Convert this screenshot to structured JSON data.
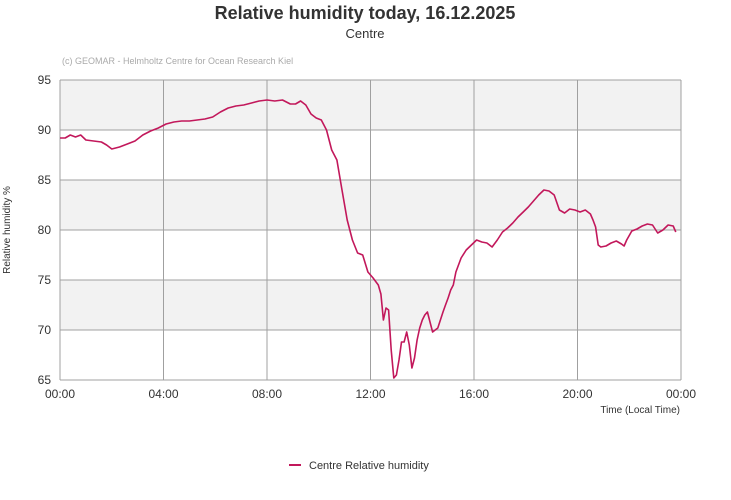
{
  "chart_data": {
    "type": "line",
    "title": "Relative humidity today, 16.12.2025",
    "subtitle": "Centre",
    "credit": "(c) GEOMAR - Helmholtz Centre for Ocean Research Kiel",
    "xlabel": "Time (Local Time)",
    "ylabel": "Relative humidity %",
    "x_ticks": [
      "00:00",
      "04:00",
      "08:00",
      "12:00",
      "16:00",
      "20:00",
      "00:00"
    ],
    "y_ticks": [
      "65",
      "70",
      "75",
      "80",
      "85",
      "90",
      "95"
    ],
    "xlim_hours": [
      0,
      24
    ],
    "ylim": [
      65,
      95
    ],
    "grid": true,
    "band_colors": [
      "#f2f2f2",
      "#ffffff"
    ],
    "line_color": "#c2185b",
    "legend_position": "bottom-center",
    "series": [
      {
        "name": "Centre Relative humidity",
        "x_hours": [
          0.0,
          0.2,
          0.4,
          0.6,
          0.8,
          1.0,
          1.3,
          1.6,
          1.8,
          2.0,
          2.3,
          2.6,
          2.9,
          3.2,
          3.5,
          3.8,
          4.1,
          4.4,
          4.7,
          5.0,
          5.3,
          5.6,
          5.9,
          6.2,
          6.5,
          6.8,
          7.1,
          7.4,
          7.7,
          8.0,
          8.3,
          8.6,
          8.9,
          9.1,
          9.3,
          9.5,
          9.7,
          9.9,
          10.1,
          10.3,
          10.5,
          10.7,
          10.9,
          11.1,
          11.3,
          11.5,
          11.7,
          11.9,
          12.1,
          12.3,
          12.4,
          12.5,
          12.6,
          12.7,
          12.8,
          12.9,
          13.0,
          13.1,
          13.2,
          13.3,
          13.4,
          13.5,
          13.6,
          13.7,
          13.8,
          13.9,
          14.0,
          14.1,
          14.2,
          14.4,
          14.6,
          14.8,
          14.9,
          15.0,
          15.1,
          15.2,
          15.3,
          15.5,
          15.7,
          15.9,
          16.1,
          16.3,
          16.5,
          16.7,
          16.9,
          17.1,
          17.3,
          17.5,
          17.7,
          17.9,
          18.1,
          18.3,
          18.5,
          18.7,
          18.9,
          19.1,
          19.3,
          19.5,
          19.7,
          19.9,
          20.1,
          20.3,
          20.5,
          20.6,
          20.7,
          20.8,
          20.9,
          21.1,
          21.3,
          21.5,
          21.7,
          21.8,
          21.9,
          22.1,
          22.3,
          22.5,
          22.7,
          22.9,
          23.1,
          23.3,
          23.5,
          23.7,
          23.8
        ],
        "values": [
          89.2,
          89.2,
          89.5,
          89.3,
          89.5,
          89.0,
          88.9,
          88.8,
          88.5,
          88.1,
          88.3,
          88.6,
          88.9,
          89.5,
          89.9,
          90.2,
          90.6,
          90.8,
          90.9,
          90.9,
          91.0,
          91.1,
          91.3,
          91.8,
          92.2,
          92.4,
          92.5,
          92.7,
          92.9,
          93.0,
          92.9,
          93.0,
          92.6,
          92.6,
          92.9,
          92.5,
          91.6,
          91.2,
          91.0,
          90.0,
          88.0,
          87.0,
          84.0,
          81.0,
          79.0,
          77.7,
          77.5,
          75.8,
          75.2,
          74.5,
          73.6,
          71.0,
          72.2,
          72.0,
          68.0,
          65.2,
          65.5,
          67.0,
          68.8,
          68.8,
          69.8,
          68.5,
          66.2,
          67.2,
          69.0,
          70.2,
          71.0,
          71.5,
          71.8,
          69.8,
          70.2,
          71.8,
          72.5,
          73.2,
          74.0,
          74.5,
          75.8,
          77.2,
          78.0,
          78.5,
          79.0,
          78.8,
          78.7,
          78.3,
          79.0,
          79.8,
          80.2,
          80.7,
          81.3,
          81.8,
          82.3,
          82.9,
          83.5,
          84.0,
          83.9,
          83.5,
          82.0,
          81.7,
          82.1,
          82.0,
          81.8,
          82.0,
          81.6,
          81.0,
          80.3,
          78.5,
          78.3,
          78.4,
          78.7,
          78.9,
          78.6,
          78.4,
          79.0,
          79.9,
          80.1,
          80.4,
          80.6,
          80.5,
          79.7,
          80.0,
          80.5,
          80.4,
          79.8
        ]
      }
    ]
  }
}
